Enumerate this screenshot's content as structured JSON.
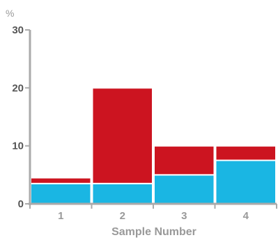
{
  "chart_data": {
    "type": "bar",
    "stacked": true,
    "title": "",
    "xlabel": "Sample Number",
    "ylabel": "%",
    "categories": [
      "1",
      "2",
      "3",
      "4"
    ],
    "ylim": [
      0,
      30
    ],
    "yticks": [
      0,
      10,
      20,
      30
    ],
    "grid": false,
    "legend": "none",
    "series": [
      {
        "color": "#1ab6e3",
        "values": [
          3.5,
          3.5,
          5,
          7.5
        ]
      },
      {
        "color": "#cc1420",
        "values": [
          1,
          16.5,
          5,
          2.5
        ]
      }
    ]
  },
  "colors": {
    "axis": "#aaaaaa",
    "tick_text": "#555555",
    "label_text": "#999999",
    "bar_outline": "#ffffff"
  }
}
